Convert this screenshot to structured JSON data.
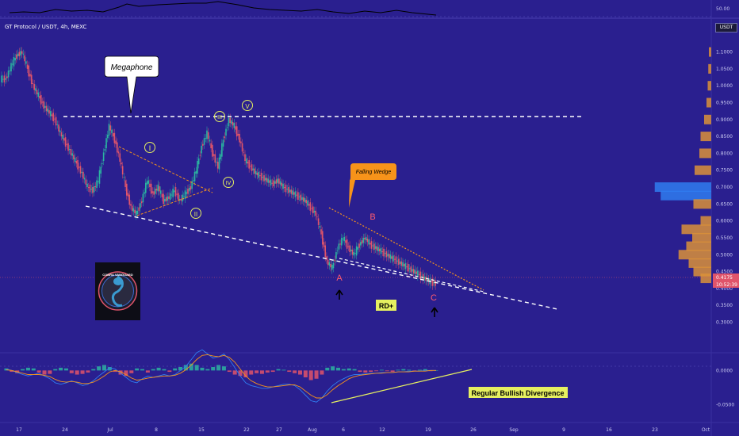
{
  "header": {
    "symbol": "GT Protocol / USDT, 4h, MEXC",
    "currency": "USDT"
  },
  "colors": {
    "background": "#2a1f8f",
    "candle_up": "#2bb5a0",
    "candle_down": "#e0546a",
    "annotation_white": "#ffffff",
    "wedge_orange": "#f7931a",
    "label_red": "#ff5a6e",
    "wave_label_yellow": "#e6f060",
    "divergence_line": "#e6f060",
    "volume_profile_orange": "#d9903a",
    "volume_profile_blue": "#2f7df0"
  },
  "annotations": {
    "megaphone": "Megaphone",
    "falling_wedge": "Falling Wedge",
    "wave_I": "I",
    "wave_II": "II",
    "wave_III": "III",
    "wave_IV": "IV",
    "wave_V": "V",
    "label_A": "A",
    "label_B": "B",
    "label_C": "C",
    "rd_plus": "RD+",
    "bullish_divergence": "Regular Bullish Divergence",
    "arrow_glyph": "🡑"
  },
  "logo": {
    "text": "COBRA VANGUARD",
    "icon": "cobra-icon"
  },
  "chart_data": [
    {
      "type": "line",
      "title": "",
      "x_ticks": [
        "17",
        "24",
        "Jul",
        "8",
        "15",
        "22",
        "27",
        "Aug",
        "6",
        "12",
        "19",
        "26",
        "Sep",
        "9",
        "16",
        "23",
        "Oct"
      ],
      "y_ticks": [
        "1.1000",
        "1.0500",
        "1.0000",
        "0.9500",
        "0.9000",
        "0.8500",
        "0.8000",
        "0.7500",
        "0.7000",
        "0.6500",
        "0.6000",
        "0.5500",
        "0.5000",
        "0.4500",
        "0.4000",
        "0.3500",
        "0.3000"
      ],
      "y_top_label": "50.00",
      "ylim": [
        0.28,
        1.16
      ],
      "current_price": "0.4175",
      "countdown": "10:52:39",
      "series": [
        {
          "values": [
            1.02,
            1.06,
            1.09,
            1.1,
            1.05,
            1.0,
            0.97,
            0.94,
            0.92,
            0.9,
            0.86,
            0.83,
            0.8,
            0.77,
            0.74,
            0.7,
            0.69,
            0.72,
            0.8,
            0.88,
            0.84,
            0.78,
            0.7,
            0.64,
            0.62,
            0.66,
            0.72,
            0.68,
            0.7,
            0.66,
            0.67,
            0.69,
            0.66,
            0.68,
            0.7,
            0.75,
            0.82,
            0.86,
            0.8,
            0.76,
            0.84,
            0.9,
            0.88,
            0.84,
            0.78,
            0.76,
            0.74,
            0.73,
            0.72,
            0.71,
            0.72,
            0.7,
            0.69,
            0.68,
            0.67,
            0.66,
            0.64,
            0.62,
            0.56,
            0.48,
            0.46,
            0.52,
            0.55,
            0.52,
            0.5,
            0.53,
            0.55,
            0.53,
            0.52,
            0.51,
            0.5,
            0.49,
            0.48,
            0.47,
            0.46,
            0.45,
            0.44,
            0.43,
            0.42,
            0.415
          ]
        }
      ],
      "horizontal_levels": [
        0.905,
        0.4175
      ],
      "volume_profile": [
        {
          "price": 1.1,
          "volume": 0.04
        },
        {
          "price": 1.05,
          "volume": 0.05
        },
        {
          "price": 1.0,
          "volume": 0.06
        },
        {
          "price": 0.95,
          "volume": 0.08
        },
        {
          "price": 0.9,
          "volume": 0.12
        },
        {
          "price": 0.85,
          "volume": 0.18
        },
        {
          "price": 0.8,
          "volume": 0.2
        },
        {
          "price": 0.75,
          "volume": 0.28
        },
        {
          "price": 0.7,
          "volume": 0.95
        },
        {
          "price": 0.675,
          "volume": 0.85
        },
        {
          "price": 0.65,
          "volume": 0.3
        },
        {
          "price": 0.6,
          "volume": 0.18
        },
        {
          "price": 0.575,
          "volume": 0.5
        },
        {
          "price": 0.55,
          "volume": 0.32
        },
        {
          "price": 0.525,
          "volume": 0.42
        },
        {
          "price": 0.5,
          "volume": 0.55
        },
        {
          "price": 0.475,
          "volume": 0.38
        },
        {
          "price": 0.45,
          "volume": 0.3
        },
        {
          "price": 0.43,
          "volume": 0.18
        }
      ]
    },
    {
      "type": "bar",
      "title": "",
      "y_ticks": [
        "0.0000",
        "-0.0500"
      ],
      "ylim": [
        -0.07,
        0.02
      ],
      "histogram": [
        0.003,
        -0.002,
        -0.004,
        0.002,
        0.004,
        0.003,
        -0.003,
        -0.006,
        -0.005,
        0.002,
        0.004,
        0.003,
        -0.004,
        -0.006,
        -0.005,
        -0.003,
        0.002,
        0.006,
        0.008,
        0.005,
        -0.002,
        -0.006,
        -0.008,
        -0.004,
        0.003,
        0.002,
        -0.003,
        0.002,
        0.004,
        0.002,
        -0.002,
        0.003,
        0.005,
        0.008,
        0.01,
        0.008,
        0.004,
        0.002,
        0.005,
        0.008,
        0.006,
        -0.002,
        -0.006,
        -0.008,
        -0.01,
        -0.006,
        -0.004,
        -0.005,
        -0.003,
        -0.002,
        0.002,
        0.001,
        -0.002,
        -0.004,
        -0.006,
        -0.01,
        -0.014,
        -0.012,
        -0.006,
        0.004,
        0.006,
        0.004,
        0.002,
        0.003,
        0.002,
        -0.002,
        -0.003,
        -0.002,
        -0.001,
        0.001,
        -0.001,
        -0.002,
        0.001,
        0.002,
        0.001,
        -0.001,
        0.001,
        0.002,
        -0.001,
        0.0
      ],
      "macd_line": [
        0.002,
        0.0,
        -0.003,
        -0.006,
        -0.008,
        -0.006,
        -0.004,
        -0.008,
        -0.012,
        -0.018,
        -0.02,
        -0.018,
        -0.015,
        -0.018,
        -0.022,
        -0.02,
        -0.015,
        -0.008,
        -0.002,
        0.004,
        0.002,
        -0.004,
        -0.01,
        -0.016,
        -0.018,
        -0.012,
        -0.008,
        -0.01,
        -0.008,
        -0.006,
        -0.008,
        -0.006,
        0.0,
        0.006,
        0.016,
        0.026,
        0.03,
        0.024,
        0.018,
        0.02,
        0.024,
        0.016,
        0.004,
        -0.008,
        -0.018,
        -0.022,
        -0.024,
        -0.026,
        -0.026,
        -0.024,
        -0.022,
        -0.02,
        -0.02,
        -0.022,
        -0.028,
        -0.036,
        -0.044,
        -0.046,
        -0.04,
        -0.03,
        -0.022,
        -0.016,
        -0.012,
        -0.008,
        -0.006,
        -0.006,
        -0.005,
        -0.004,
        -0.004,
        -0.003,
        -0.003,
        -0.003,
        -0.002,
        -0.002,
        -0.001,
        -0.001,
        -0.001,
        0.0,
        0.0,
        0.0
      ],
      "signal_line": [
        0.001,
        0.0,
        -0.002,
        -0.004,
        -0.006,
        -0.006,
        -0.006,
        -0.007,
        -0.009,
        -0.013,
        -0.016,
        -0.017,
        -0.016,
        -0.017,
        -0.019,
        -0.019,
        -0.017,
        -0.013,
        -0.008,
        -0.002,
        0.0,
        -0.002,
        -0.006,
        -0.011,
        -0.014,
        -0.013,
        -0.011,
        -0.01,
        -0.009,
        -0.008,
        -0.008,
        -0.007,
        -0.004,
        0.001,
        0.008,
        0.016,
        0.022,
        0.023,
        0.021,
        0.02,
        0.022,
        0.019,
        0.012,
        0.002,
        -0.008,
        -0.015,
        -0.019,
        -0.022,
        -0.024,
        -0.024,
        -0.023,
        -0.022,
        -0.021,
        -0.021,
        -0.024,
        -0.03,
        -0.036,
        -0.04,
        -0.04,
        -0.035,
        -0.028,
        -0.022,
        -0.017,
        -0.012,
        -0.009,
        -0.007,
        -0.006,
        -0.005,
        -0.004,
        -0.004,
        -0.003,
        -0.003,
        -0.002,
        -0.002,
        -0.002,
        -0.001,
        -0.001,
        -0.001,
        0.0,
        0.0
      ]
    }
  ]
}
